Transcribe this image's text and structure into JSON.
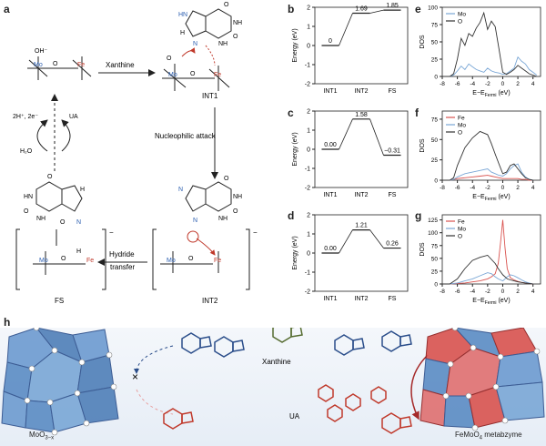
{
  "panel_labels": {
    "a": "a",
    "b": "b",
    "c": "c",
    "d": "d",
    "e": "e",
    "f": "f",
    "g": "g",
    "h": "h"
  },
  "mechanism": {
    "xanthine_label": "Xanthine",
    "nucleophilic_label": "Nucleophilic attack",
    "hydride_label_1": "Hydride",
    "hydride_label_2": "transfer",
    "int1_label": "INT1",
    "int2_label": "INT2",
    "fs_label": "FS",
    "regen_label": "2H⁺, 2e⁻",
    "ua_label": "UA",
    "water_label": "H₂O",
    "mo": "Mo",
    "fe": "Fe",
    "o": "O",
    "oh": "OH⁻",
    "h": "H",
    "n": "N",
    "nh": "NH",
    "hn": "HN",
    "minus": "−"
  },
  "chart_data": [
    {
      "type": "line",
      "panel": "b",
      "categories": [
        "INT1",
        "INT2",
        "FS"
      ],
      "values": [
        0,
        1.69,
        1.85
      ],
      "value_labels": [
        "0",
        "1.69",
        "1.85"
      ],
      "ylabel": "Energy (eV)",
      "yticks": [
        2,
        1,
        0,
        -1,
        -2
      ],
      "ylim": [
        -2,
        2
      ]
    },
    {
      "type": "line",
      "panel": "c",
      "categories": [
        "INT1",
        "INT2",
        "FS"
      ],
      "values": [
        0.0,
        1.58,
        -0.31
      ],
      "value_labels": [
        "0.00",
        "1.58",
        "−0.31"
      ],
      "ylabel": "Energy (eV)",
      "yticks": [
        2,
        1,
        0,
        -1,
        -2
      ],
      "ylim": [
        -2,
        2
      ]
    },
    {
      "type": "line",
      "panel": "d",
      "categories": [
        "INT1",
        "INT2",
        "FS"
      ],
      "values": [
        0.0,
        1.21,
        0.26
      ],
      "value_labels": [
        "0.00",
        "1.21",
        "0.26"
      ],
      "ylabel": "Energy (eV)",
      "yticks": [
        2,
        1,
        0,
        -1,
        -2
      ],
      "ylim": [
        -2,
        2
      ]
    },
    {
      "type": "line",
      "panel": "e",
      "xlabel": "E−E",
      "xlabel_sub": "Fermi",
      "xlabel_unit": " (eV)",
      "ylabel": "DOS",
      "xticks": [
        -8,
        -6,
        -4,
        -2,
        0,
        2,
        4
      ],
      "xlim": [
        -8,
        5
      ],
      "yticks": [
        0,
        25,
        50,
        75,
        100
      ],
      "ylim": [
        0,
        100
      ],
      "legend": "top-left",
      "series": [
        {
          "name": "Mo",
          "color": "#7aa7d6",
          "x": [
            -8,
            -7,
            -6.5,
            -6,
            -5.5,
            -5,
            -4.5,
            -4,
            -3.5,
            -3,
            -2.5,
            -2,
            -1.5,
            -1,
            -0.5,
            0,
            0.5,
            1,
            1.5,
            2,
            2.5,
            3,
            3.5,
            4,
            4.5
          ],
          "y": [
            0,
            0,
            2,
            8,
            15,
            10,
            18,
            14,
            10,
            8,
            6,
            12,
            8,
            6,
            5,
            3,
            4,
            8,
            12,
            28,
            22,
            18,
            10,
            6,
            2
          ]
        },
        {
          "name": "O",
          "color": "#333333",
          "x": [
            -8,
            -7,
            -6.5,
            -6,
            -5.5,
            -5,
            -4.5,
            -4,
            -3.5,
            -3,
            -2.5,
            -2,
            -1.5,
            -1,
            -0.5,
            0,
            0.5,
            1,
            1.5,
            2,
            2.5,
            3,
            3.5,
            4,
            4.5
          ],
          "y": [
            0,
            0,
            4,
            25,
            55,
            45,
            62,
            58,
            70,
            78,
            92,
            68,
            80,
            72,
            40,
            6,
            3,
            6,
            10,
            16,
            12,
            8,
            4,
            2,
            0
          ]
        }
      ]
    },
    {
      "type": "line",
      "panel": "f",
      "xlabel": "E−E",
      "xlabel_sub": "Fermi",
      "xlabel_unit": " (eV)",
      "ylabel": "DOS",
      "xticks": [
        -8,
        -6,
        -4,
        -2,
        0,
        2,
        4
      ],
      "xlim": [
        -8,
        5
      ],
      "yticks": [
        0,
        25,
        50,
        75
      ],
      "ylim": [
        0,
        85
      ],
      "legend": "top-left",
      "series": [
        {
          "name": "Fe",
          "color": "#d9534f",
          "x": [
            -8,
            -7,
            -6.5,
            -6,
            -5,
            -4,
            -3,
            -2,
            -1.5,
            -1,
            -0.5,
            0,
            0.5,
            1,
            1.5,
            2,
            2.5,
            3,
            3.5,
            4
          ],
          "y": [
            0,
            0,
            1,
            2,
            3,
            4,
            5,
            6,
            5,
            4,
            3,
            2,
            2,
            2,
            2,
            2,
            1,
            1,
            0,
            0
          ]
        },
        {
          "name": "Mo",
          "color": "#7aa7d6",
          "x": [
            -8,
            -7,
            -6.5,
            -6,
            -5,
            -4,
            -3,
            -2,
            -1.5,
            -1,
            -0.5,
            0,
            0.5,
            1,
            1.5,
            2,
            2.5,
            3,
            3.5,
            4
          ],
          "y": [
            0,
            0,
            1,
            4,
            8,
            10,
            12,
            14,
            10,
            8,
            6,
            5,
            8,
            14,
            18,
            20,
            10,
            4,
            1,
            0
          ]
        },
        {
          "name": "O",
          "color": "#333333",
          "x": [
            -8,
            -7,
            -6.5,
            -6,
            -5,
            -4,
            -3,
            -2,
            -1.5,
            -1,
            -0.5,
            0,
            0.5,
            1,
            1.5,
            2,
            2.5,
            3,
            3.5,
            4
          ],
          "y": [
            0,
            0,
            3,
            18,
            40,
            52,
            60,
            56,
            45,
            32,
            20,
            8,
            10,
            18,
            20,
            14,
            8,
            3,
            1,
            0
          ]
        }
      ]
    },
    {
      "type": "line",
      "panel": "g",
      "xlabel": "E−E",
      "xlabel_sub": "Fermi",
      "xlabel_unit": " (eV)",
      "ylabel": "DOS",
      "xticks": [
        -8,
        -6,
        -4,
        -2,
        0,
        2,
        4
      ],
      "xlim": [
        -8,
        5
      ],
      "yticks": [
        0,
        25,
        50,
        75,
        100,
        125
      ],
      "ylim": [
        0,
        135
      ],
      "legend": "top-left",
      "series": [
        {
          "name": "Fe",
          "color": "#d9534f",
          "x": [
            -8,
            -7,
            -6,
            -5,
            -4,
            -3,
            -2,
            -1.5,
            -1,
            -0.6,
            -0.3,
            0,
            0.3,
            0.6,
            1,
            1.5,
            2,
            2.5,
            3,
            3.5,
            4
          ],
          "y": [
            0,
            0,
            1,
            2,
            4,
            6,
            10,
            14,
            20,
            40,
            80,
            125,
            70,
            30,
            12,
            8,
            5,
            3,
            2,
            1,
            0
          ]
        },
        {
          "name": "Mo",
          "color": "#7aa7d6",
          "x": [
            -8,
            -7,
            -6,
            -5,
            -4,
            -3,
            -2,
            -1.5,
            -1,
            -0.6,
            -0.3,
            0,
            0.3,
            0.6,
            1,
            1.5,
            2,
            2.5,
            3,
            3.5,
            4
          ],
          "y": [
            0,
            0,
            2,
            6,
            10,
            16,
            22,
            20,
            14,
            10,
            8,
            6,
            10,
            14,
            18,
            16,
            12,
            8,
            4,
            2,
            0
          ]
        },
        {
          "name": "O",
          "color": "#333333",
          "x": [
            -8,
            -7,
            -6,
            -5,
            -4,
            -3,
            -2,
            -1.5,
            -1,
            -0.6,
            -0.3,
            0,
            0.3,
            0.6,
            1,
            1.5,
            2,
            2.5,
            3,
            3.5,
            4
          ],
          "y": [
            0,
            0,
            10,
            30,
            46,
            52,
            56,
            48,
            40,
            30,
            24,
            18,
            14,
            10,
            8,
            6,
            4,
            3,
            2,
            1,
            0
          ]
        }
      ]
    }
  ],
  "panel_h": {
    "left_label": "MoO",
    "left_label_sub": "3−x",
    "right_label": "FeMoO",
    "right_label_sub": "4",
    "right_label_suffix": " metabzyme",
    "xanthine_label": "Xanthine",
    "ua_label": "UA",
    "block_mark": "×"
  },
  "colors": {
    "blue_poly": "#5b8cc4",
    "red_poly": "#d9534f",
    "mo_text": "#2a5db0",
    "fe_text": "#c0392b"
  }
}
